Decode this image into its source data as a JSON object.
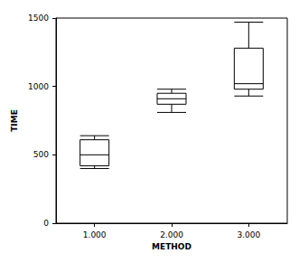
{
  "chart_data": {
    "type": "boxplot",
    "x_label": "METHOD",
    "y_label": "TIME",
    "categories": [
      "1.000",
      "2.000",
      "3.000"
    ],
    "values": [
      [
        400,
        420,
        500,
        610,
        640
      ],
      [
        810,
        870,
        910,
        950,
        980
      ],
      [
        930,
        980,
        1020,
        1280,
        1470
      ]
    ],
    "color": "#000000",
    "ylim": [
      0,
      1500
    ],
    "yticks": [
      0,
      500,
      1000,
      1500
    ],
    "grid": false
  }
}
